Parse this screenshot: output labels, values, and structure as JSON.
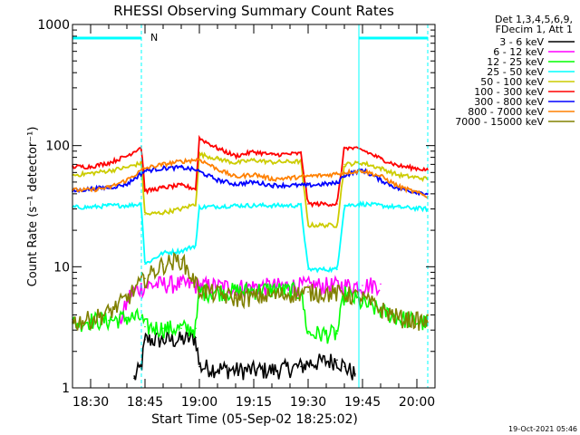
{
  "chart_data": {
    "type": "line",
    "title": "RHESSI Observing Summary Count Rates",
    "xlabel": "Start Time (05-Sep-02 18:25:02)",
    "ylabel": "Count Rate (s⁻¹ detector⁻¹)",
    "y_scale": "log",
    "ylim": [
      1,
      1000
    ],
    "xlim": [
      "18:25",
      "20:05"
    ],
    "x_ticks": [
      "18:30",
      "18:45",
      "19:00",
      "19:15",
      "19:30",
      "19:45",
      "20:00"
    ],
    "y_ticks": [
      "1",
      "10",
      "100",
      "1000"
    ],
    "legend": {
      "position": "top-right",
      "header": [
        "Det 1,3,4,5,6,9,",
        "FDecim 1, Att 1"
      ]
    },
    "annotations": [
      {
        "text": "N",
        "x": "18:45",
        "color": "#00ffff"
      }
    ],
    "night_flag": {
      "color": "#00ffff",
      "segments": [
        [
          "18:25",
          "18:44"
        ],
        [
          "19:44",
          "20:03"
        ]
      ],
      "dashed_lines": [
        "18:44",
        "19:44",
        "20:03"
      ],
      "solid_lines": [
        "18:25",
        "19:44"
      ]
    },
    "series": [
      {
        "name": "3 - 6 keV",
        "color": "#000000",
        "x": [
          "18:42",
          "18:44",
          "18:45",
          "18:50",
          "18:55",
          "18:59",
          "19:00",
          "19:10",
          "19:20",
          "19:28",
          "19:30",
          "19:38",
          "19:40",
          "19:43"
        ],
        "y": [
          1.2,
          1.5,
          2.5,
          2.5,
          2.5,
          2.6,
          1.5,
          1.4,
          1.4,
          1.5,
          1.6,
          1.7,
          1.5,
          1.3
        ]
      },
      {
        "name": "6 - 12 keV",
        "color": "#ff00ff",
        "x": [
          "18:38",
          "18:41",
          "18:45",
          "18:50",
          "18:55",
          "19:00",
          "19:10",
          "19:20",
          "19:30",
          "19:40",
          "19:45",
          "19:50"
        ],
        "y": [
          3.5,
          6.0,
          7.0,
          7.2,
          7.2,
          7.0,
          6.8,
          6.9,
          7.0,
          7.0,
          7.0,
          7.2
        ]
      },
      {
        "name": "12 - 25 keV",
        "color": "#00ff00",
        "x": [
          "18:25",
          "18:30",
          "18:35",
          "18:40",
          "18:44",
          "18:45",
          "18:50",
          "18:55",
          "18:59",
          "19:00",
          "19:10",
          "19:20",
          "19:28",
          "19:30",
          "19:38",
          "19:40",
          "19:45",
          "19:55",
          "20:03"
        ],
        "y": [
          3.4,
          3.6,
          3.6,
          3.8,
          3.8,
          3.2,
          3.1,
          3.1,
          3.1,
          6.2,
          6.3,
          6.5,
          6.2,
          2.8,
          2.8,
          6.0,
          5.0,
          3.8,
          3.4
        ]
      },
      {
        "name": "25 - 50 keV",
        "color": "#00ffff",
        "x": [
          "18:25",
          "18:30",
          "18:35",
          "18:40",
          "18:44",
          "18:45",
          "18:50",
          "18:55",
          "18:59",
          "19:00",
          "19:10",
          "19:20",
          "19:28",
          "19:30",
          "19:38",
          "19:40",
          "19:45",
          "19:55",
          "20:03"
        ],
        "y": [
          31,
          31,
          32,
          32,
          33,
          10.5,
          13,
          13.5,
          15,
          31,
          32,
          32,
          32,
          9.5,
          9.5,
          32,
          33,
          31,
          30
        ]
      },
      {
        "name": "50 - 100 keV",
        "color": "#cccc00",
        "x": [
          "18:25",
          "18:30",
          "18:35",
          "18:40",
          "18:44",
          "18:45",
          "18:50",
          "18:55",
          "18:59",
          "19:00",
          "19:05",
          "19:10",
          "19:15",
          "19:20",
          "19:28",
          "19:30",
          "19:38",
          "19:40",
          "19:45",
          "19:50",
          "19:55",
          "20:03"
        ],
        "y": [
          57,
          59,
          62,
          66,
          72,
          27,
          28,
          30,
          33,
          85,
          78,
          72,
          76,
          73,
          74,
          22,
          22,
          70,
          72,
          65,
          57,
          53
        ]
      },
      {
        "name": "100 - 300 keV",
        "color": "#ff0000",
        "x": [
          "18:25",
          "18:30",
          "18:35",
          "18:40",
          "18:44",
          "18:45",
          "18:50",
          "18:55",
          "18:59",
          "19:00",
          "19:05",
          "19:10",
          "19:15",
          "19:20",
          "19:28",
          "19:30",
          "19:38",
          "19:40",
          "19:45",
          "19:50",
          "19:55",
          "20:03"
        ],
        "y": [
          67,
          67,
          72,
          82,
          98,
          42,
          45,
          47,
          44,
          115,
          95,
          82,
          89,
          84,
          86,
          33,
          33,
          97,
          92,
          78,
          68,
          63
        ]
      },
      {
        "name": "300 - 800 keV",
        "color": "#0000ff",
        "x": [
          "18:25",
          "18:30",
          "18:35",
          "18:40",
          "18:45",
          "18:50",
          "18:55",
          "18:59",
          "19:00",
          "19:05",
          "19:10",
          "19:15",
          "19:20",
          "19:28",
          "19:30",
          "19:38",
          "19:40",
          "19:45",
          "19:50",
          "19:55",
          "20:03"
        ],
        "y": [
          42,
          44,
          45,
          48,
          62,
          65,
          66,
          63,
          61,
          52,
          48,
          50,
          47,
          47,
          47,
          49,
          57,
          63,
          52,
          44,
          40
        ]
      },
      {
        "name": "800 - 7000 keV",
        "color": "#ff8000",
        "x": [
          "18:25",
          "18:30",
          "18:35",
          "18:40",
          "18:45",
          "18:50",
          "18:55",
          "19:00",
          "19:05",
          "19:10",
          "19:15",
          "19:20",
          "19:25",
          "19:30",
          "19:35",
          "19:40",
          "19:45",
          "19:50",
          "19:55",
          "20:03"
        ],
        "y": [
          43,
          43,
          45,
          52,
          65,
          70,
          74,
          77,
          64,
          55,
          58,
          53,
          54,
          56,
          57,
          60,
          62,
          56,
          46,
          38
        ]
      },
      {
        "name": "7000 - 15000 keV",
        "color": "#808000",
        "x": [
          "18:25",
          "18:30",
          "18:35",
          "18:40",
          "18:45",
          "18:50",
          "18:55",
          "19:00",
          "19:10",
          "19:20",
          "19:30",
          "19:40",
          "19:45",
          "19:50",
          "19:55",
          "20:03"
        ],
        "y": [
          3.5,
          3.7,
          4.2,
          5.5,
          8.0,
          10.5,
          11.5,
          6.5,
          5.5,
          5.8,
          6.2,
          6.0,
          5.5,
          4.5,
          3.8,
          3.5
        ]
      }
    ]
  },
  "footer": {
    "timestamp": "19-Oct-2021 05:46"
  }
}
